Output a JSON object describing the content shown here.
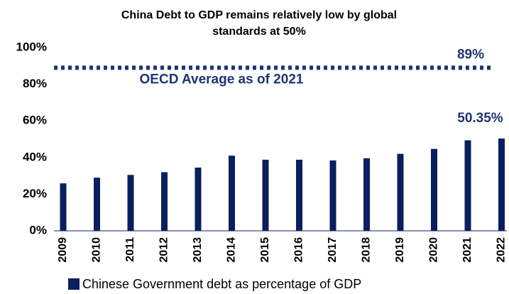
{
  "chart_data": {
    "type": "bar",
    "title": "China Debt to GDP remains relatively low by global standards at 50%",
    "categories": [
      "2009",
      "2010",
      "2011",
      "2012",
      "2013",
      "2014",
      "2015",
      "2016",
      "2017",
      "2018",
      "2019",
      "2020",
      "2021",
      "2022"
    ],
    "series": [
      {
        "name": "Chinese Government debt as percentage of GDP",
        "color": "#0b1f5e",
        "values": [
          25.9,
          29,
          30.5,
          32,
          34.5,
          41,
          38.8,
          38.8,
          38.4,
          39.6,
          42,
          44.7,
          49.4,
          50.35
        ],
        "value_labels": [
          null,
          null,
          null,
          null,
          null,
          null,
          null,
          null,
          null,
          null,
          null,
          null,
          null,
          "50.35%"
        ]
      }
    ],
    "reference": {
      "value": 89,
      "label": "89%",
      "name": "OECD Average as of 2021",
      "color": "#1f3571"
    },
    "ylim": [
      0,
      100
    ],
    "yticks": [
      {
        "value": 0,
        "label": "0%"
      },
      {
        "value": 20,
        "label": "20%"
      },
      {
        "value": 40,
        "label": "40%"
      },
      {
        "value": 60,
        "label": "60%"
      },
      {
        "value": 80,
        "label": "80%"
      },
      {
        "value": 100,
        "label": "100%"
      }
    ],
    "legend": "bottom"
  }
}
